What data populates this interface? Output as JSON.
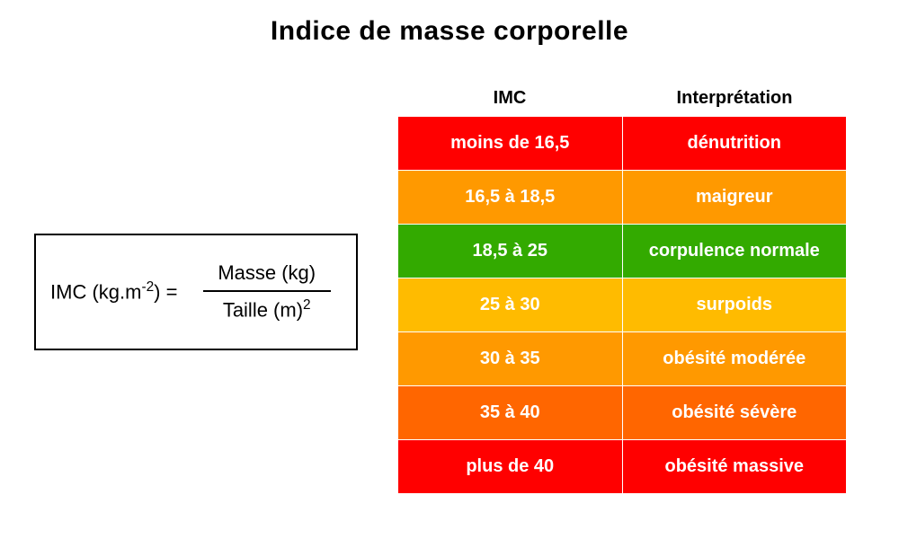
{
  "title": {
    "text": "Indice de masse corporelle",
    "fontsize": 30,
    "color": "#000000"
  },
  "formula": {
    "lhs_prefix": "IMC (kg.m",
    "lhs_sup": "-2",
    "lhs_suffix": ") =",
    "numerator": "Masse (kg)",
    "denominator_prefix": "Taille (m)",
    "denominator_sup": "2",
    "fontsize": 22,
    "border_color": "#000000",
    "text_color": "#000000"
  },
  "table": {
    "header_fontsize": 20,
    "cell_fontsize": 20,
    "headers": [
      {
        "label": "IMC"
      },
      {
        "label": "Interprétation"
      }
    ],
    "row_separator_color": "#ffffff",
    "rows": [
      {
        "bg": "#ff0000",
        "imc": "moins de 16,5",
        "interpretation": "dénutrition"
      },
      {
        "bg": "#ff9900",
        "imc": "16,5 à 18,5",
        "interpretation": "maigreur"
      },
      {
        "bg": "#33aa00",
        "imc": "18,5 à 25",
        "interpretation": "corpulence normale"
      },
      {
        "bg": "#ffbb00",
        "imc": "25 à 30",
        "interpretation": "surpoids"
      },
      {
        "bg": "#ff9900",
        "imc": "30 à 35",
        "interpretation": "obésité modérée"
      },
      {
        "bg": "#ff6600",
        "imc": "35 à 40",
        "interpretation": "obésité sévère"
      },
      {
        "bg": "#ff0000",
        "imc": "plus de 40",
        "interpretation": "obésité massive"
      }
    ]
  }
}
